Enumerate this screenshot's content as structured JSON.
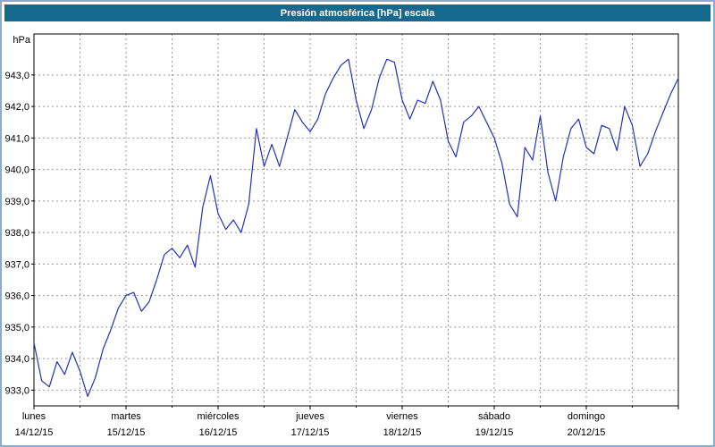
{
  "window": {
    "title": "Presión atmosférica [hPa] escala"
  },
  "colors": {
    "frame": "#86add3",
    "title_bar_bg": "#15698e",
    "title_text": "#ffffff",
    "background": "#ffffff",
    "plot_border": "#000000",
    "grid": "#999999",
    "line": "#2233bb",
    "tick_text": "#000000"
  },
  "chart_data": {
    "type": "line",
    "title": "Presión atmosférica [hPa] escala",
    "grid": true,
    "legend": "none",
    "y_axis": {
      "unit_label": "hPa",
      "ylim": [
        932.5,
        944.3
      ],
      "tick_values": [
        933,
        934,
        935,
        936,
        937,
        938,
        939,
        940,
        941,
        942,
        943
      ],
      "tick_labels": [
        "933,0",
        "934,0",
        "935,0",
        "936,0",
        "937,0",
        "938,0",
        "939,0",
        "940,0",
        "941,0",
        "942,0",
        "943,0"
      ]
    },
    "x_axis": {
      "xlim_hours": [
        0,
        168
      ],
      "gridline_step_hours": 12,
      "day_tick_step_hours": 24,
      "day_labels": [
        {
          "day": "lunes",
          "date": "14/12/15"
        },
        {
          "day": "martes",
          "date": "15/12/15"
        },
        {
          "day": "miércoles",
          "date": "16/12/15"
        },
        {
          "day": "jueves",
          "date": "17/12/15"
        },
        {
          "day": "viernes",
          "date": "18/12/15"
        },
        {
          "day": "sábado",
          "date": "19/12/15"
        },
        {
          "day": "domingo",
          "date": "20/12/15"
        }
      ]
    },
    "series": [
      {
        "name": "Presión atmosférica",
        "color": "#2233bb",
        "x_start_hours": 0,
        "x_step_hours": 2,
        "values": [
          934.5,
          933.3,
          933.1,
          933.9,
          933.5,
          934.2,
          933.6,
          932.8,
          933.4,
          934.3,
          934.9,
          935.6,
          936.0,
          936.1,
          935.5,
          935.8,
          936.5,
          937.3,
          937.5,
          937.2,
          937.6,
          936.9,
          938.8,
          939.8,
          938.6,
          938.1,
          938.4,
          938.0,
          938.9,
          941.3,
          940.1,
          940.8,
          940.1,
          941.0,
          941.9,
          941.5,
          941.2,
          941.6,
          942.4,
          942.9,
          943.3,
          943.5,
          942.2,
          941.3,
          941.9,
          942.9,
          943.5,
          943.4,
          942.2,
          941.6,
          942.2,
          942.1,
          942.8,
          942.2,
          940.9,
          940.4,
          941.5,
          941.7,
          942.0,
          941.5,
          941.0,
          940.2,
          938.9,
          938.5,
          940.7,
          940.3,
          941.7,
          939.9,
          939.0,
          940.4,
          941.3,
          941.6,
          940.7,
          940.5,
          941.4,
          941.3,
          940.6,
          942.0,
          941.4,
          940.1,
          940.5,
          941.2,
          941.8,
          942.4,
          942.9
        ]
      }
    ]
  }
}
